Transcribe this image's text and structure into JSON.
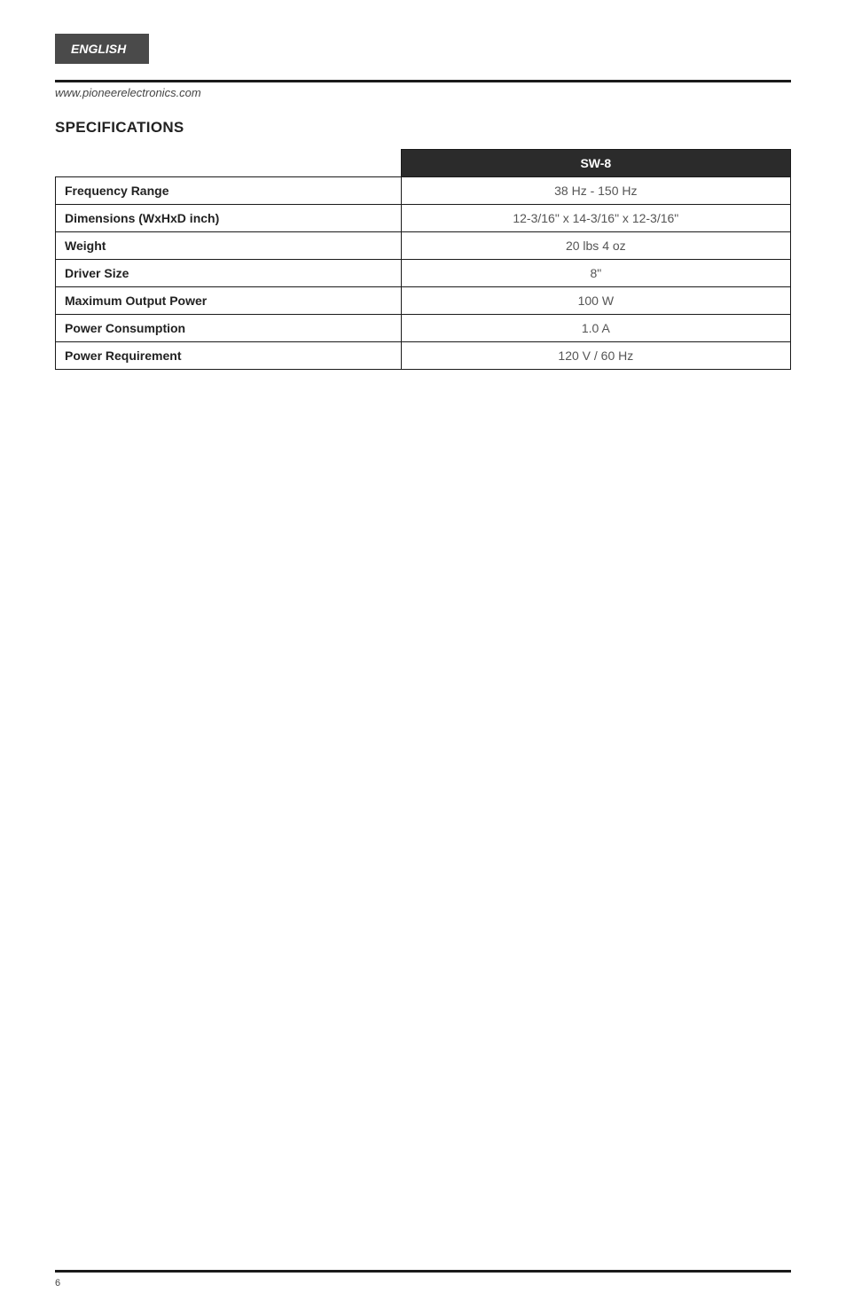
{
  "header": {
    "language_tab": "ENGLISH",
    "url": "www.pioneerelectronics.com"
  },
  "section": {
    "title": "SPECIFICATIONS"
  },
  "table": {
    "model_header": "SW-8",
    "rows": [
      {
        "label": "Frequency Range",
        "value": "38 Hz - 150 Hz"
      },
      {
        "label": "Dimensions (WxHxD inch)",
        "value": "12-3/16\" x 14-3/16\" x 12-3/16\""
      },
      {
        "label": "Weight",
        "value": "20 lbs 4 oz"
      },
      {
        "label": "Driver Size",
        "value": "8\""
      },
      {
        "label": "Maximum Output Power",
        "value": "100 W"
      },
      {
        "label": "Power Consumption",
        "value": "1.0 A"
      },
      {
        "label": "Power Requirement",
        "value": "120 V / 60 Hz"
      }
    ]
  },
  "footer": {
    "page_number": "6"
  },
  "colors": {
    "tab_bg": "#4a4a4a",
    "rule": "#1a1a1a",
    "model_header_bg": "#2b2b2b",
    "text_dark": "#222222",
    "text_muted": "#555555"
  }
}
